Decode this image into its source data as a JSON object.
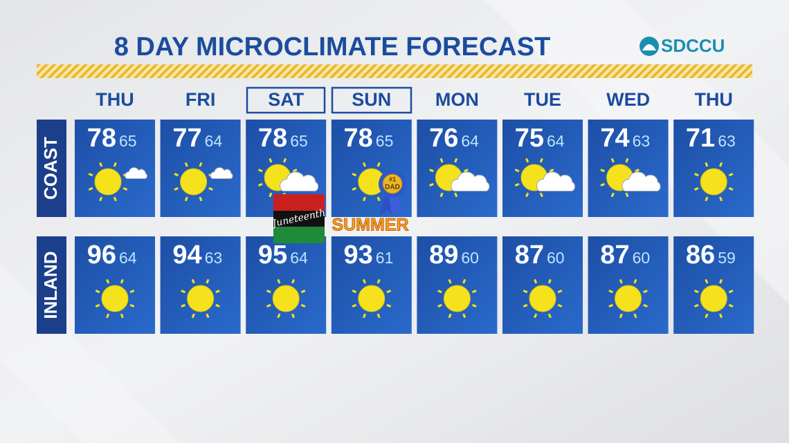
{
  "header": {
    "title": "8 DAY MICROCLIMATE FORECAST",
    "logo": "SDCCU"
  },
  "days": [
    "THU",
    "FRI",
    "SAT",
    "SUN",
    "MON",
    "TUE",
    "WED",
    "THU"
  ],
  "rows": [
    {
      "label": "COAST",
      "highs": [
        "78",
        "77",
        "78",
        "78",
        "76",
        "75",
        "74",
        "71"
      ],
      "lows": [
        "65",
        "64",
        "65",
        "65",
        "64",
        "64",
        "63",
        "63"
      ]
    },
    {
      "label": "INLAND",
      "highs": [
        "96",
        "94",
        "95",
        "93",
        "89",
        "87",
        "87",
        "86"
      ],
      "lows": [
        "64",
        "63",
        "64",
        "61",
        "60",
        "60",
        "60",
        "59"
      ]
    }
  ],
  "badges": {
    "juneteenth": "Juneteenth",
    "summer": "SUMMER",
    "ribbon_top": "#1",
    "ribbon_bottom": "DAD"
  }
}
